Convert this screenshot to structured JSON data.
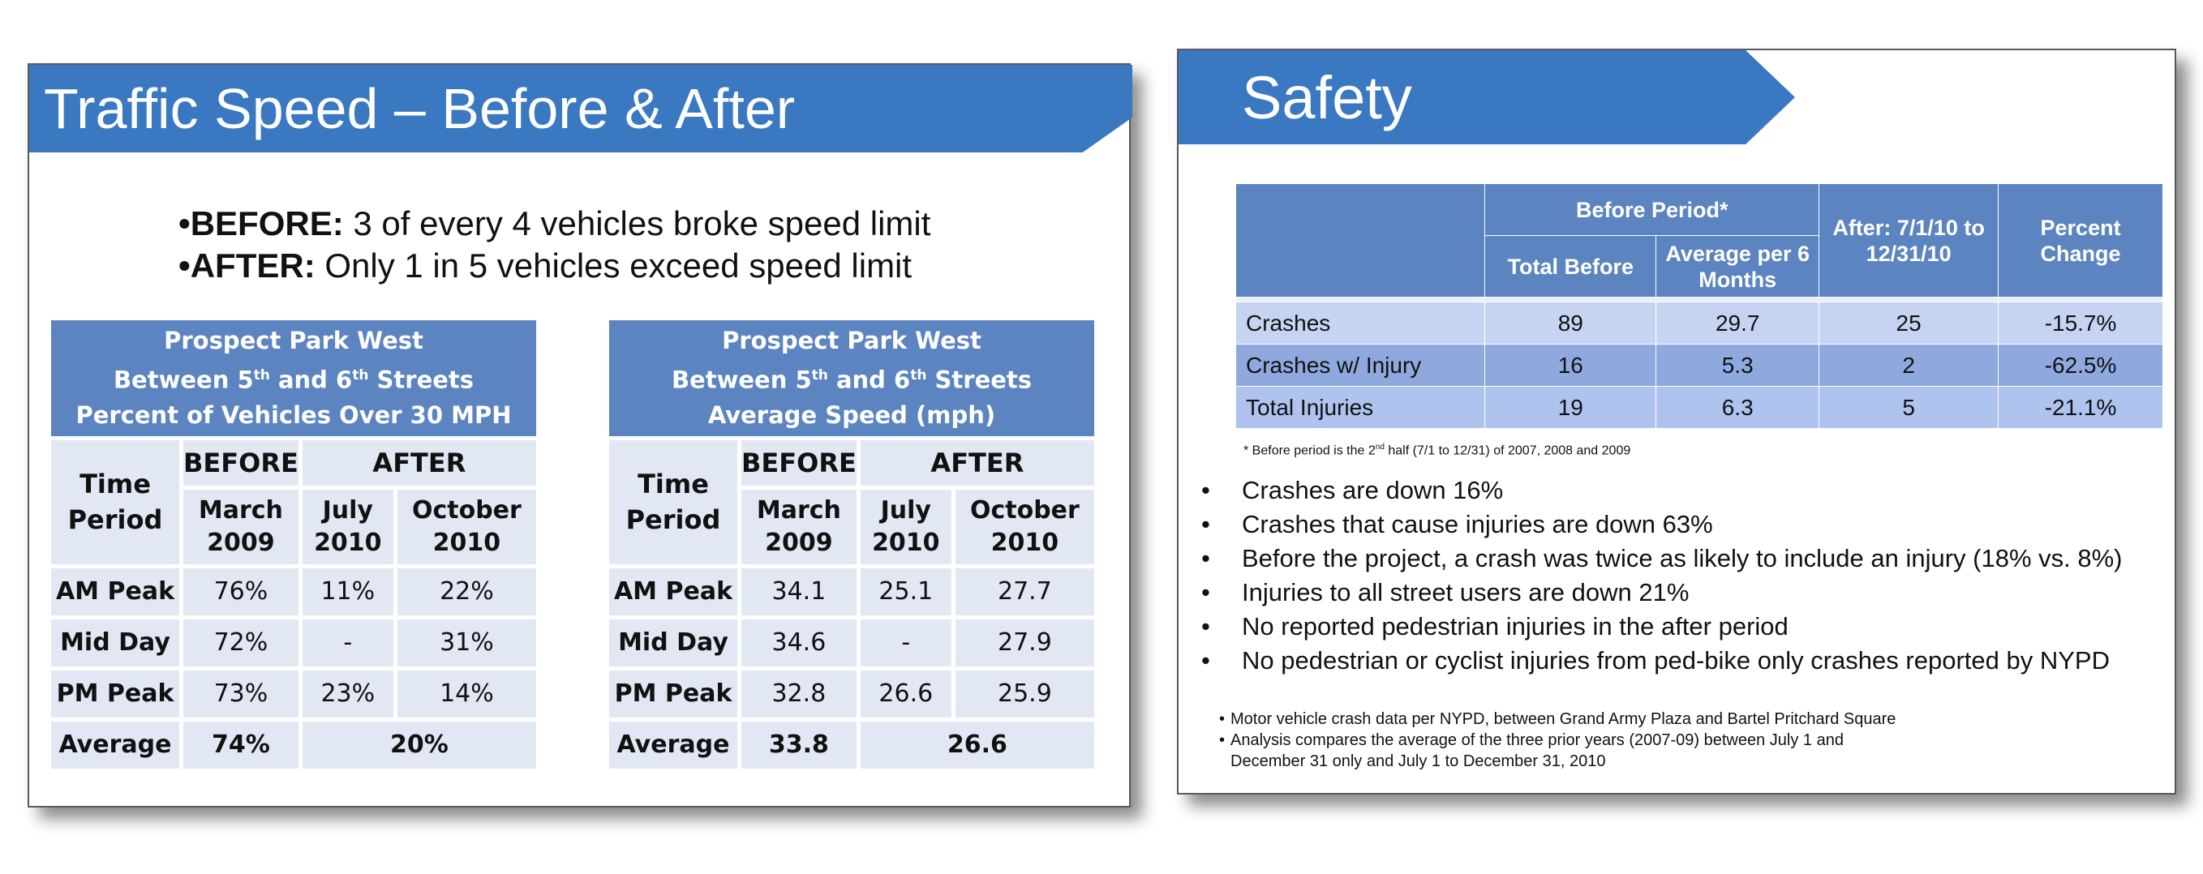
{
  "slide1": {
    "title": "Traffic Speed – Before & After",
    "bullets": [
      {
        "lead": "•BEFORE:",
        "text": " 3 of every 4 vehicles broke speed limit"
      },
      {
        "lead": "•AFTER:",
        "text": " Only 1 in 5 vehicles exceed speed limit"
      }
    ],
    "table_a": {
      "header_line1": "Prospect Park West",
      "header_line2_a": "Between 5",
      "header_line2_sup1": "th",
      "header_line2_b": " and 6",
      "header_line2_sup2": "th",
      "header_line2_c": " Streets",
      "header_line3": "Percent of Vehicles Over 30 MPH",
      "time_period": "Time Period",
      "before": "BEFORE",
      "after": "AFTER",
      "col1": "March 2009",
      "col2": "July 2010",
      "col3": "October 2010",
      "rows": [
        {
          "label": "AM Peak",
          "v1": "76%",
          "v2": "11%",
          "v3": "22%"
        },
        {
          "label": "Mid Day",
          "v1": "72%",
          "v2": "-",
          "v3": "31%"
        },
        {
          "label": "PM Peak",
          "v1": "73%",
          "v2": "23%",
          "v3": "14%"
        }
      ],
      "avg_label": "Average",
      "avg_before": "74%",
      "avg_after": "20%"
    },
    "table_b": {
      "header_line1": "Prospect Park West",
      "header_line2_a": "Between 5",
      "header_line2_sup1": "th",
      "header_line2_b": " and 6",
      "header_line2_sup2": "th",
      "header_line2_c": " Streets",
      "header_line3": "Average Speed (mph)",
      "time_period": "Time Period",
      "before": "BEFORE",
      "after": "AFTER",
      "col1": "March 2009",
      "col2": "July 2010",
      "col3": "October 2010",
      "rows": [
        {
          "label": "AM Peak",
          "v1": "34.1",
          "v2": "25.1",
          "v3": "27.7"
        },
        {
          "label": "Mid Day",
          "v1": "34.6",
          "v2": "-",
          "v3": "27.9"
        },
        {
          "label": "PM Peak",
          "v1": "32.8",
          "v2": "26.6",
          "v3": "25.9"
        }
      ],
      "avg_label": "Average",
      "avg_before": "33.8",
      "avg_after": "26.6"
    }
  },
  "slide2": {
    "title": "Safety",
    "table": {
      "before_period": "Before  Period*",
      "after_label": "After: 7/1/10 to 12/31/10",
      "percent_change": "Percent Change",
      "total_before": "Total Before",
      "avg_per_6": "Average per 6 Months",
      "rows": [
        {
          "label": "Crashes",
          "total": "89",
          "avg": "29.7",
          "after": "25",
          "pct": "-15.7%"
        },
        {
          "label": "Crashes w/ Injury",
          "total": "16",
          "avg": "5.3",
          "after": "2",
          "pct": "-62.5%"
        },
        {
          "label": "Total Injuries",
          "total": "19",
          "avg": "6.3",
          "after": "5",
          "pct": "-21.1%"
        }
      ]
    },
    "footnote_a": "* Before period is the 2",
    "footnote_sup": "nd",
    "footnote_b": " half (7/1 to 12/31) of 2007, 2008 and 2009",
    "bullets": [
      "Crashes are down 16%",
      "Crashes that cause injuries are down 63%",
      "Before the project, a crash was twice as likely to include an injury (18% vs. 8%)",
      "Injuries to all street users are down 21%",
      "No reported pedestrian injuries in the after period",
      "No pedestrian or cyclist injuries from ped-bike only crashes reported by NYPD"
    ],
    "notes": [
      "Motor vehicle crash data per NYPD, between Grand Army Plaza and Bartel Pritchard Square",
      "Analysis compares the average of the three prior years (2007-09) between July 1 and December 31 only and July 1 to December 31, 2010"
    ]
  }
}
